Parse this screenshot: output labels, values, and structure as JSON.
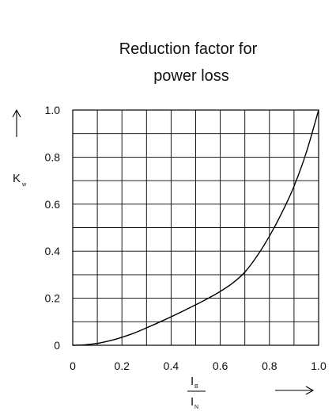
{
  "chart_data": {
    "type": "line",
    "title_lines": [
      "Reduction factor for",
      "power loss"
    ],
    "ylabel": "K",
    "ylabel_sub": "w",
    "xlabel_num": "I",
    "xlabel_num_sub": "B",
    "xlabel_den": "I",
    "xlabel_den_sub": "N",
    "xlim": [
      0,
      1.0
    ],
    "ylim": [
      0,
      1.0
    ],
    "x_ticks": [
      "0",
      "0.2",
      "0.4",
      "0.6",
      "0.8",
      "1.0"
    ],
    "y_ticks": [
      "0",
      "0.2",
      "0.4",
      "0.6",
      "0.8",
      "1.0"
    ],
    "grid": true,
    "grid_x_step": 0.1,
    "grid_y_step": 0.1,
    "series": [
      {
        "x": [
          0,
          0.05,
          0.1,
          0.15,
          0.2,
          0.25,
          0.3,
          0.35,
          0.4,
          0.45,
          0.5,
          0.55,
          0.6,
          0.65,
          0.7,
          0.75,
          0.8,
          0.85,
          0.9,
          0.95,
          1.0
        ],
        "values": [
          0,
          0.002,
          0.008,
          0.019,
          0.034,
          0.052,
          0.074,
          0.097,
          0.121,
          0.146,
          0.172,
          0.199,
          0.229,
          0.264,
          0.311,
          0.38,
          0.464,
          0.562,
          0.676,
          0.82,
          1.0
        ]
      }
    ]
  }
}
